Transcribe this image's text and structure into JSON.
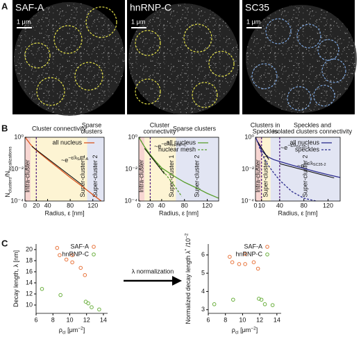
{
  "panels": [
    "A",
    "B",
    "C"
  ],
  "images": [
    {
      "label": "SAF-A",
      "scale_bar": "1 μm"
    },
    {
      "label": "hnRNP-C",
      "scale_bar": "1 μm"
    },
    {
      "label": "SC35",
      "scale_bar": "1 μm"
    }
  ],
  "annotation": "λ normalization",
  "chart_data": [
    {
      "type": "line",
      "log_y": true,
      "x_label": "Radius, ε [nm]",
      "y_label": [
        "N",
        "clusters",
        "/N",
        "localizations"
      ],
      "xlim": [
        0,
        140
      ],
      "xticks": [
        0,
        20,
        40,
        80,
        120
      ],
      "ylim": [
        0.0001,
        1
      ],
      "yticks": [
        {
          "value": 1,
          "label": "10⁰"
        },
        {
          "value": 0.01,
          "label": "10⁻²"
        },
        {
          "value": 0.0001,
          "label": "10⁻⁴"
        }
      ],
      "vlines": [
        20
      ],
      "vline_color": "#5b2a86",
      "regions": [
        {
          "from": 0,
          "to": 10,
          "color": "#f7d6d2",
          "label": "Intra-cluster",
          "label_color": "#d9534f"
        },
        {
          "from": 10,
          "to": 110,
          "color": "#fdf4d3",
          "label": "Super-cluster 1",
          "label_color": "#e8a33d"
        },
        {
          "from": 110,
          "to": 140,
          "color": "#e2e5f3",
          "label": "Super-cluster 2",
          "label_color": "#4a5aa8"
        }
      ],
      "annotations": [
        [
          "Cluster connectivity"
        ],
        [
          "Sparse",
          "clusters"
        ]
      ],
      "exp_labels": [
        {
          "base": "~e",
          "exp": "−ε/λ",
          "sub": "SAF-A"
        }
      ],
      "series": [
        {
          "name": "all nucleus",
          "color": "#d9541e",
          "dashed": false,
          "x": [
            0,
            5,
            10,
            20,
            40,
            60,
            80,
            100,
            120,
            135
          ],
          "values": [
            1,
            0.6,
            0.35,
            0.15,
            0.04,
            0.011,
            0.003,
            0.0009,
            0.00025,
            0.0001
          ]
        }
      ],
      "fits": [
        {
          "color": "#000000",
          "x": [
            12,
            100
          ],
          "values": [
            0.27,
            0.0011
          ]
        }
      ]
    },
    {
      "type": "line",
      "log_y": true,
      "x_label": "Radius, ε [nm]",
      "xlim": [
        0,
        140
      ],
      "xticks": [
        0,
        20,
        40,
        80,
        120
      ],
      "ylim": [
        0.0001,
        1
      ],
      "yticks": [
        {
          "value": 1,
          "label": "10⁰"
        },
        {
          "value": 0.01,
          "label": "10⁻²"
        },
        {
          "value": 0.0001,
          "label": "10⁻⁴"
        }
      ],
      "vlines": [
        20
      ],
      "vline_color": "#5b2a86",
      "regions": [
        {
          "from": 0,
          "to": 10,
          "color": "#f7d6d2",
          "label": "Intra-cluster",
          "label_color": "#d9534f"
        },
        {
          "from": 10,
          "to": 65,
          "color": "#fdf4d3",
          "label": "Super-cluster 1",
          "label_color": "#e8a33d"
        },
        {
          "from": 65,
          "to": 140,
          "color": "#e2e5f3",
          "label": "Super-cluster 2",
          "label_color": "#4a5aa8"
        }
      ],
      "annotations": [
        [
          "Cluster",
          "connectivity"
        ],
        [
          "Sparse clusters"
        ]
      ],
      "exp_labels": [
        {
          "base": "~e",
          "exp": "−ε/λ",
          "sub": "hnRNP-C"
        }
      ],
      "series": [
        {
          "name": "all nucleus",
          "color": "#5a9e2d",
          "dashed": false,
          "x": [
            0,
            5,
            10,
            20,
            30,
            40,
            60,
            80,
            100,
            120,
            140
          ],
          "values": [
            1,
            0.5,
            0.25,
            0.08,
            0.03,
            0.012,
            0.004,
            0.0015,
            0.0007,
            0.0003,
            0.00015
          ]
        },
        {
          "name": "nuclear mesh",
          "color": "#5a9e2d",
          "dashed": true,
          "x": [
            0,
            10,
            20,
            40,
            60,
            75
          ],
          "values": [
            1,
            0.25,
            0.07,
            0.01,
            0.0012,
            0.0002
          ]
        }
      ],
      "fits": [
        {
          "color": "#000000",
          "x": [
            10,
            45
          ],
          "values": [
            0.2,
            0.005
          ]
        }
      ]
    },
    {
      "type": "line",
      "log_y": true,
      "x_label": "Radius, ε [nm]",
      "xlim": [
        0,
        140
      ],
      "xticks": [
        0,
        10,
        40,
        80,
        120
      ],
      "ylim": [
        0.0001,
        1
      ],
      "yticks": [
        {
          "value": 1,
          "label": "10⁰"
        },
        {
          "value": 0.01,
          "label": "10⁻²"
        },
        {
          "value": 0.0001,
          "label": "10⁻⁴"
        }
      ],
      "vlines": [
        10,
        40
      ],
      "vline_color": "#5b2a86",
      "regions": [
        {
          "from": 0,
          "to": 10,
          "color": "#f7d6d2",
          "label": "Intra-cluster",
          "label_color": "#d9534f"
        },
        {
          "from": 10,
          "to": 25,
          "color": "#fdf4d3",
          "label": "Super-cluster 1",
          "label_color": "#e8a33d"
        },
        {
          "from": 25,
          "to": 140,
          "color": "#e2e5f3",
          "label": "Super-cluster 2",
          "label_color": "#4a5aa8"
        }
      ],
      "annotations": [
        [
          "Clusters in",
          "Speckles"
        ],
        [
          "Speckles and",
          "isolated clusters connectivity"
        ]
      ],
      "exp_labels": [
        {
          "base": "~e",
          "exp": "−ε/λ",
          "sub": "SC35-1"
        },
        {
          "base": "~e",
          "exp": "−ε/λ",
          "sub": "SC35-2"
        }
      ],
      "series": [
        {
          "name": "all nucleus",
          "color": "#2a2a8c",
          "dashed": false,
          "x": [
            0,
            5,
            10,
            20,
            30,
            40,
            60,
            80,
            100,
            120,
            140
          ],
          "values": [
            1,
            0.4,
            0.15,
            0.06,
            0.04,
            0.03,
            0.018,
            0.011,
            0.007,
            0.0045,
            0.003
          ]
        },
        {
          "name": "speckles",
          "color": "#2a2a8c",
          "dashed": true,
          "x": [
            0,
            5,
            10,
            20,
            30,
            40,
            60,
            80,
            100
          ],
          "values": [
            1,
            0.35,
            0.1,
            0.02,
            0.006,
            0.002,
            0.0004,
            0.00015,
            0.0001
          ]
        }
      ],
      "fits": [
        {
          "color": "#000000",
          "x": [
            4,
            22
          ],
          "values": [
            0.5,
            0.04
          ]
        },
        {
          "color": "#000000",
          "x": [
            40,
            130
          ],
          "values": [
            0.022,
            0.0028
          ]
        }
      ]
    },
    {
      "type": "scatter",
      "x_label": [
        "ρ",
        "cl",
        " [μm",
        "−2",
        "]"
      ],
      "y_label": [
        "Decay length, λ [nm]"
      ],
      "xlim": [
        6,
        14.5
      ],
      "xticks": [
        6,
        8,
        10,
        12,
        14
      ],
      "ylim": [
        8.5,
        21
      ],
      "yticks": [
        10,
        12,
        14,
        16,
        18,
        20
      ],
      "series": [
        {
          "name": "SAF-A",
          "color": "#e8733a",
          "x": [
            8.5,
            8.8,
            9.6,
            10.3,
            10.3,
            11.3,
            11.8
          ],
          "values": [
            20.3,
            19,
            18.2,
            19,
            17.7,
            16.7,
            15.4
          ]
        },
        {
          "name": "hnRNP-C",
          "color": "#6aaf3d",
          "x": [
            6.7,
            8.9,
            11.9,
            12.2,
            12.6,
            13.5
          ],
          "values": [
            12.9,
            11.8,
            10.6,
            10.3,
            9.6,
            9.2
          ]
        }
      ]
    },
    {
      "type": "scatter",
      "x_label": [
        "ρ",
        "cl",
        " [μm",
        "−2",
        "]"
      ],
      "y_label": [
        "Normalized decay length λ",
        "*",
        " /10",
        "−2"
      ],
      "xlim": [
        6,
        14.5
      ],
      "xticks": [
        6,
        8,
        10,
        12,
        14
      ],
      "ylim": [
        2.8,
        6.6
      ],
      "yticks": [
        3,
        4,
        5,
        6
      ],
      "series": [
        {
          "name": "SAF-A",
          "color": "#e8733a",
          "x": [
            8.5,
            8.8,
            9.6,
            10.3,
            10.3,
            11.3,
            11.8
          ],
          "values": [
            5.9,
            5.6,
            5.5,
            6.05,
            5.5,
            5.6,
            5.25
          ]
        },
        {
          "name": "hnRNP-C",
          "color": "#6aaf3d",
          "x": [
            6.7,
            8.9,
            11.9,
            12.2,
            12.6,
            13.5
          ],
          "values": [
            3.3,
            3.55,
            3.6,
            3.55,
            3.3,
            3.25
          ]
        }
      ]
    }
  ]
}
